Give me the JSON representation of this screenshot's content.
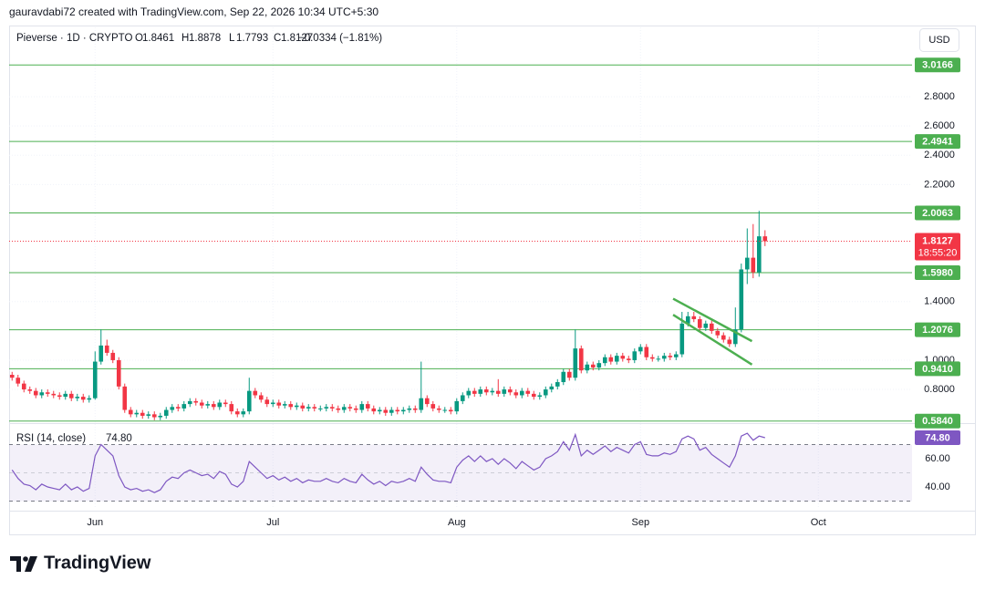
{
  "header": {
    "credit": "gauravdabi72 created with TradingView.com, Sep 22, 2026 10:34 UTC+5:30"
  },
  "chart_data": {
    "type": "candlestick",
    "symbol": "Pieverse · 1D · CRYPTO",
    "ohlc_keys": [
      "O",
      "H",
      "L",
      "C"
    ],
    "change": "−0.0334 (−1.81%)",
    "currency": "USD",
    "countdown": "18:55:20",
    "open": [
      0.9,
      0.88,
      0.84,
      0.8,
      0.79,
      0.76,
      0.78,
      0.77,
      0.76,
      0.75,
      0.77,
      0.74,
      0.75,
      0.73,
      0.74,
      0.99,
      1.1,
      1.05,
      1.0,
      0.82,
      0.66,
      0.63,
      0.64,
      0.62,
      0.63,
      0.61,
      0.62,
      0.66,
      0.68,
      0.67,
      0.7,
      0.72,
      0.71,
      0.69,
      0.7,
      0.68,
      0.71,
      0.7,
      0.65,
      0.63,
      0.65,
      0.79,
      0.76,
      0.73,
      0.7,
      0.71,
      0.69,
      0.7,
      0.68,
      0.69,
      0.67,
      0.68,
      0.67,
      0.67,
      0.68,
      0.67,
      0.66,
      0.68,
      0.67,
      0.66,
      0.7,
      0.67,
      0.65,
      0.66,
      0.64,
      0.66,
      0.65,
      0.66,
      0.67,
      0.66,
      0.74,
      0.7,
      0.67,
      0.66,
      0.66,
      0.65,
      0.72,
      0.76,
      0.79,
      0.77,
      0.8,
      0.78,
      0.79,
      0.77,
      0.8,
      0.78,
      0.76,
      0.79,
      0.77,
      0.75,
      0.76,
      0.8,
      0.82,
      0.85,
      0.92,
      0.88,
      1.08,
      0.93,
      0.97,
      0.95,
      0.98,
      1.02,
      0.99,
      1.03,
      1.01,
      1.0,
      1.06,
      1.09,
      1.02,
      1.01,
      1.01,
      1.03,
      1.02,
      1.04,
      1.25,
      1.3,
      1.28,
      1.22,
      1.25,
      1.2,
      1.17,
      1.14,
      1.11,
      1.21,
      1.62,
      1.7,
      1.6,
      1.8461
    ],
    "high": [
      0.92,
      0.9,
      0.86,
      0.82,
      0.81,
      0.8,
      0.8,
      0.79,
      0.78,
      0.79,
      0.79,
      0.77,
      0.77,
      0.76,
      1.06,
      1.21,
      1.14,
      1.07,
      1.02,
      0.84,
      0.68,
      0.66,
      0.66,
      0.65,
      0.65,
      0.64,
      0.68,
      0.7,
      0.7,
      0.72,
      0.74,
      0.74,
      0.73,
      0.72,
      0.72,
      0.73,
      0.73,
      0.72,
      0.67,
      0.67,
      0.88,
      0.81,
      0.78,
      0.75,
      0.73,
      0.73,
      0.72,
      0.72,
      0.71,
      0.71,
      0.7,
      0.7,
      0.69,
      0.7,
      0.7,
      0.69,
      0.7,
      0.7,
      0.69,
      0.72,
      0.72,
      0.69,
      0.68,
      0.68,
      0.68,
      0.68,
      0.68,
      0.69,
      0.69,
      0.99,
      0.76,
      0.72,
      0.69,
      0.68,
      0.68,
      0.74,
      0.78,
      0.81,
      0.81,
      0.82,
      0.82,
      0.81,
      0.87,
      0.82,
      0.82,
      0.8,
      0.81,
      0.81,
      0.79,
      0.78,
      0.82,
      0.84,
      0.87,
      0.94,
      0.94,
      1.21,
      1.1,
      0.99,
      0.99,
      1.0,
      1.04,
      1.04,
      1.05,
      1.05,
      1.03,
      1.08,
      1.11,
      1.11,
      1.04,
      1.03,
      1.05,
      1.05,
      1.06,
      1.33,
      1.33,
      1.33,
      1.3,
      1.27,
      1.27,
      1.22,
      1.19,
      1.16,
      1.36,
      1.66,
      1.9,
      1.93,
      2.02,
      1.8878
    ],
    "low": [
      0.86,
      0.82,
      0.78,
      0.77,
      0.74,
      0.74,
      0.75,
      0.74,
      0.73,
      0.73,
      0.72,
      0.72,
      0.71,
      0.71,
      0.73,
      0.97,
      1.03,
      0.98,
      0.8,
      0.64,
      0.61,
      0.61,
      0.6,
      0.6,
      0.59,
      0.59,
      0.6,
      0.64,
      0.65,
      0.65,
      0.68,
      0.69,
      0.67,
      0.67,
      0.66,
      0.66,
      0.68,
      0.63,
      0.61,
      0.61,
      0.63,
      0.74,
      0.71,
      0.68,
      0.68,
      0.67,
      0.67,
      0.66,
      0.66,
      0.65,
      0.65,
      0.65,
      0.65,
      0.65,
      0.65,
      0.64,
      0.64,
      0.65,
      0.64,
      0.64,
      0.65,
      0.63,
      0.63,
      0.62,
      0.62,
      0.63,
      0.63,
      0.64,
      0.64,
      0.64,
      0.68,
      0.65,
      0.64,
      0.64,
      0.63,
      0.63,
      0.7,
      0.74,
      0.75,
      0.75,
      0.76,
      0.76,
      0.75,
      0.75,
      0.76,
      0.74,
      0.74,
      0.75,
      0.73,
      0.73,
      0.74,
      0.78,
      0.8,
      0.83,
      0.86,
      0.86,
      0.91,
      0.91,
      0.93,
      0.93,
      0.96,
      0.97,
      0.97,
      0.99,
      0.98,
      0.98,
      1.04,
      1.0,
      0.99,
      0.99,
      0.99,
      1.0,
      1.0,
      1.02,
      1.23,
      1.26,
      1.2,
      1.2,
      1.18,
      1.15,
      1.12,
      1.09,
      1.09,
      1.19,
      1.52,
      1.56,
      1.57,
      1.7793
    ],
    "close": [
      0.88,
      0.84,
      0.8,
      0.79,
      0.76,
      0.78,
      0.77,
      0.76,
      0.75,
      0.77,
      0.74,
      0.75,
      0.73,
      0.74,
      0.99,
      1.1,
      1.05,
      1.0,
      0.82,
      0.66,
      0.63,
      0.64,
      0.62,
      0.63,
      0.61,
      0.62,
      0.66,
      0.68,
      0.67,
      0.7,
      0.72,
      0.71,
      0.69,
      0.7,
      0.68,
      0.71,
      0.7,
      0.65,
      0.63,
      0.65,
      0.79,
      0.76,
      0.73,
      0.7,
      0.71,
      0.69,
      0.7,
      0.68,
      0.69,
      0.67,
      0.68,
      0.67,
      0.67,
      0.68,
      0.67,
      0.66,
      0.68,
      0.67,
      0.66,
      0.7,
      0.67,
      0.65,
      0.66,
      0.64,
      0.66,
      0.65,
      0.66,
      0.67,
      0.66,
      0.74,
      0.7,
      0.67,
      0.66,
      0.66,
      0.65,
      0.72,
      0.76,
      0.79,
      0.77,
      0.8,
      0.78,
      0.79,
      0.77,
      0.8,
      0.78,
      0.76,
      0.79,
      0.77,
      0.75,
      0.76,
      0.8,
      0.82,
      0.85,
      0.92,
      0.88,
      1.08,
      0.93,
      0.97,
      0.95,
      0.98,
      1.02,
      0.99,
      1.03,
      1.01,
      1.0,
      1.06,
      1.09,
      1.02,
      1.01,
      1.01,
      1.03,
      1.02,
      1.04,
      1.25,
      1.3,
      1.28,
      1.22,
      1.25,
      1.2,
      1.17,
      1.14,
      1.11,
      1.21,
      1.62,
      1.7,
      1.6,
      1.8461,
      1.8127
    ],
    "up_color": "#089981",
    "down_color": "#f23645",
    "xlim": [
      -0.5,
      151.8
    ],
    "xticks": [
      {
        "value": 14,
        "label": "Jun"
      },
      {
        "value": 44,
        "label": "Jul"
      },
      {
        "value": 75,
        "label": "Aug"
      },
      {
        "value": 106,
        "label": "Sep"
      },
      {
        "value": 136,
        "label": "Oct"
      }
    ],
    "ylim": [
      0.576,
      3.274
    ],
    "yticks": [
      {
        "value": 2.8,
        "label": "2.8000"
      },
      {
        "value": 2.6,
        "label": "2.6000"
      },
      {
        "value": 2.4,
        "label": "2.4000"
      },
      {
        "value": 2.2,
        "label": "2.2000"
      },
      {
        "value": 1.4,
        "label": "1.4000"
      },
      {
        "value": 1.0,
        "label": "1.0000"
      },
      {
        "value": 0.8,
        "label": "0.8000"
      }
    ],
    "grid": true,
    "levels": [
      3.0166,
      2.4941,
      2.0063,
      {
        "value": 1.598,
        "label": "1.5980"
      },
      1.2076,
      {
        "value": 0.941,
        "label": "0.9410"
      },
      {
        "value": 0.584,
        "label": "0.5840"
      }
    ],
    "level_color": "#4caf50",
    "trendlines": [
      {
        "x": [
          111.5,
          124.8
        ],
        "y": [
          1.42,
          1.13
        ]
      },
      {
        "x": [
          111.5,
          124.8
        ],
        "y": [
          1.31,
          0.97
        ]
      }
    ],
    "rsi": {
      "name": "RSI (14, close)",
      "values": [
        52,
        46,
        42,
        41,
        38,
        42,
        40,
        39,
        38,
        42,
        38,
        40,
        37,
        39,
        62,
        70,
        66,
        62,
        48,
        40,
        38,
        39,
        37,
        38,
        36,
        38,
        44,
        47,
        46,
        50,
        52,
        50,
        48,
        49,
        46,
        51,
        49,
        42,
        40,
        44,
        58,
        54,
        50,
        46,
        48,
        45,
        47,
        44,
        46,
        43,
        45,
        44,
        44,
        46,
        44,
        43,
        46,
        44,
        43,
        49,
        45,
        42,
        44,
        41,
        44,
        43,
        44,
        46,
        44,
        54,
        49,
        45,
        44,
        44,
        43,
        54,
        59,
        62,
        58,
        62,
        58,
        60,
        56,
        60,
        57,
        53,
        58,
        55,
        52,
        54,
        60,
        62,
        65,
        72,
        66,
        77,
        62,
        66,
        63,
        66,
        69,
        65,
        68,
        66,
        64,
        70,
        72,
        63,
        62,
        62,
        64,
        63,
        65,
        74,
        76,
        74,
        66,
        68,
        63,
        60,
        57,
        54,
        62,
        76,
        78,
        73,
        76,
        74.8
      ],
      "value_label": "74.80",
      "color": "#7e57c2",
      "ylim": [
        25.2,
        83.2
      ],
      "yticks": [
        {
          "value": 60,
          "label": "60.00"
        },
        {
          "value": 40,
          "label": "40.00"
        }
      ],
      "levels": [
        70,
        50,
        30
      ]
    }
  },
  "footer": {
    "logo": "TradingView"
  }
}
